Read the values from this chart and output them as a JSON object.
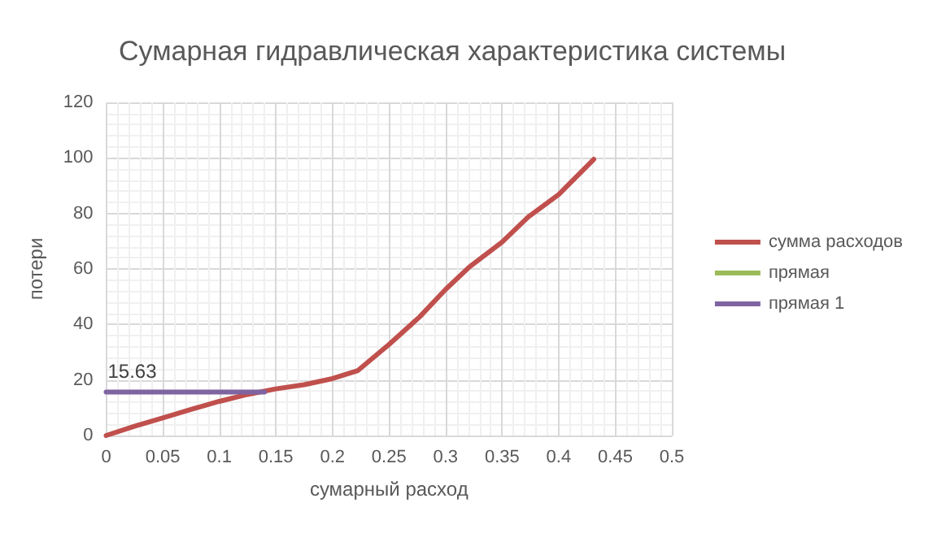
{
  "chart_data": {
    "type": "line",
    "title": "Сумарная гидравлическая характеристика системы",
    "xlabel": "сумарный расход",
    "ylabel": "потери",
    "xlim": [
      0,
      0.5
    ],
    "xticks": [
      0,
      0.05,
      0.1,
      0.15,
      0.2,
      0.25,
      0.3,
      0.35,
      0.4,
      0.45,
      0.5
    ],
    "ylim": [
      0,
      120
    ],
    "yticks": [
      0,
      20,
      40,
      60,
      80,
      100,
      120
    ],
    "grid": true,
    "legend": "right",
    "marker": "none",
    "line_style": "solid",
    "series": [
      {
        "name": "сумма расходов",
        "color": "#c0504d",
        "x": [
          0,
          0.025,
          0.05,
          0.075,
          0.1,
          0.125,
          0.15,
          0.175,
          0.2,
          0.2225,
          0.25,
          0.277,
          0.3,
          0.321,
          0.35,
          0.373,
          0.4,
          0.431
        ],
        "values": [
          0,
          3.3,
          6.3,
          9.4,
          12.3,
          14.8,
          16.8,
          18.3,
          20.5,
          23.4,
          32.8,
          42.7,
          52.6,
          60.7,
          69.7,
          78.7,
          86.8,
          99.5
        ]
      },
      {
        "name": "прямая",
        "color": "#9bbb59"
      },
      {
        "name": "прямая 1",
        "color": "#8064a2",
        "x": [
          0,
          0.14
        ],
        "values": [
          15.63,
          15.63
        ],
        "value_labels": [
          "15.63",
          null
        ]
      }
    ]
  }
}
